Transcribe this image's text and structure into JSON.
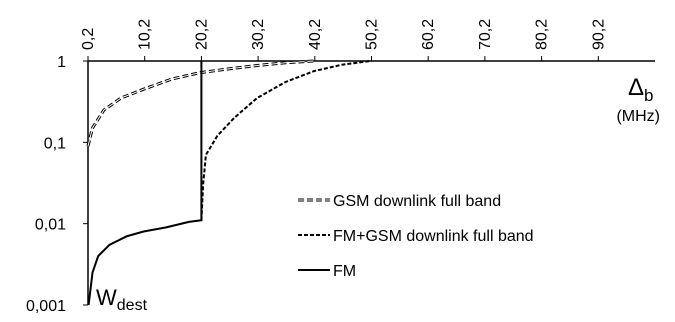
{
  "chart_data": {
    "type": "line",
    "ylog": true,
    "xlim": [
      0.2,
      100.2
    ],
    "ylim": [
      0.001,
      1
    ],
    "xticks": [
      {
        "value": 0.2,
        "label": "0,2"
      },
      {
        "value": 10.2,
        "label": "10,2"
      },
      {
        "value": 20.2,
        "label": "20,2"
      },
      {
        "value": 30.2,
        "label": "30,2"
      },
      {
        "value": 40.2,
        "label": "40,2"
      },
      {
        "value": 50.2,
        "label": "50,2"
      },
      {
        "value": 60.2,
        "label": "60,2"
      },
      {
        "value": 70.2,
        "label": "70,2"
      },
      {
        "value": 80.2,
        "label": "80,2"
      },
      {
        "value": 90.2,
        "label": "90,2"
      }
    ],
    "yticks": [
      {
        "value": 0.001,
        "label": "0,001"
      },
      {
        "value": 0.01,
        "label": "0,01"
      },
      {
        "value": 0.1,
        "label": "0,1"
      },
      1
    ],
    "x_label": {
      "symbol": "Δ",
      "sub": "b",
      "unit": "(MHz)"
    },
    "annotation": {
      "text": "W",
      "sub": "dest"
    },
    "series": [
      {
        "name": "GSM downlink full band",
        "color": "#000000",
        "style": "hollow-dash",
        "x": [
          0.2,
          1,
          3,
          6,
          10,
          15,
          20,
          25,
          30,
          35,
          40
        ],
        "values": [
          0.09,
          0.15,
          0.25,
          0.35,
          0.45,
          0.6,
          0.72,
          0.8,
          0.88,
          0.95,
          1
        ]
      },
      {
        "name": "FM+GSM downlink full band",
        "color": "#000000",
        "style": "dash",
        "x": [
          20.2,
          20.5,
          21,
          23,
          26,
          30,
          35,
          40,
          45,
          50
        ],
        "values": [
          0.011,
          0.03,
          0.07,
          0.12,
          0.2,
          0.35,
          0.55,
          0.75,
          0.9,
          1
        ]
      },
      {
        "name": "FM",
        "color": "#000000",
        "style": "solid",
        "x": [
          0.3,
          1,
          2,
          4,
          7,
          10,
          14,
          18,
          20.2,
          20.2
        ],
        "values": [
          0.001,
          0.0025,
          0.004,
          0.0055,
          0.007,
          0.008,
          0.009,
          0.0105,
          0.011,
          1
        ]
      }
    ]
  }
}
